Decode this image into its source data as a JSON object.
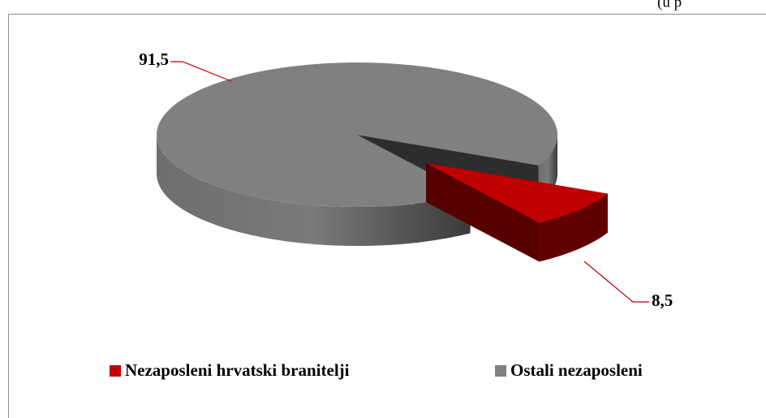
{
  "chart_data": {
    "type": "pie3d",
    "subtitle": "(u p",
    "categories": [
      "Nezaposleni hrvatski branitelji",
      "Ostali nezaposleni"
    ],
    "values": [
      8.5,
      91.5
    ],
    "value_labels": [
      "8,5",
      "91,5"
    ],
    "colors": [
      "#c00000",
      "#808080"
    ],
    "legend": "bottom"
  }
}
